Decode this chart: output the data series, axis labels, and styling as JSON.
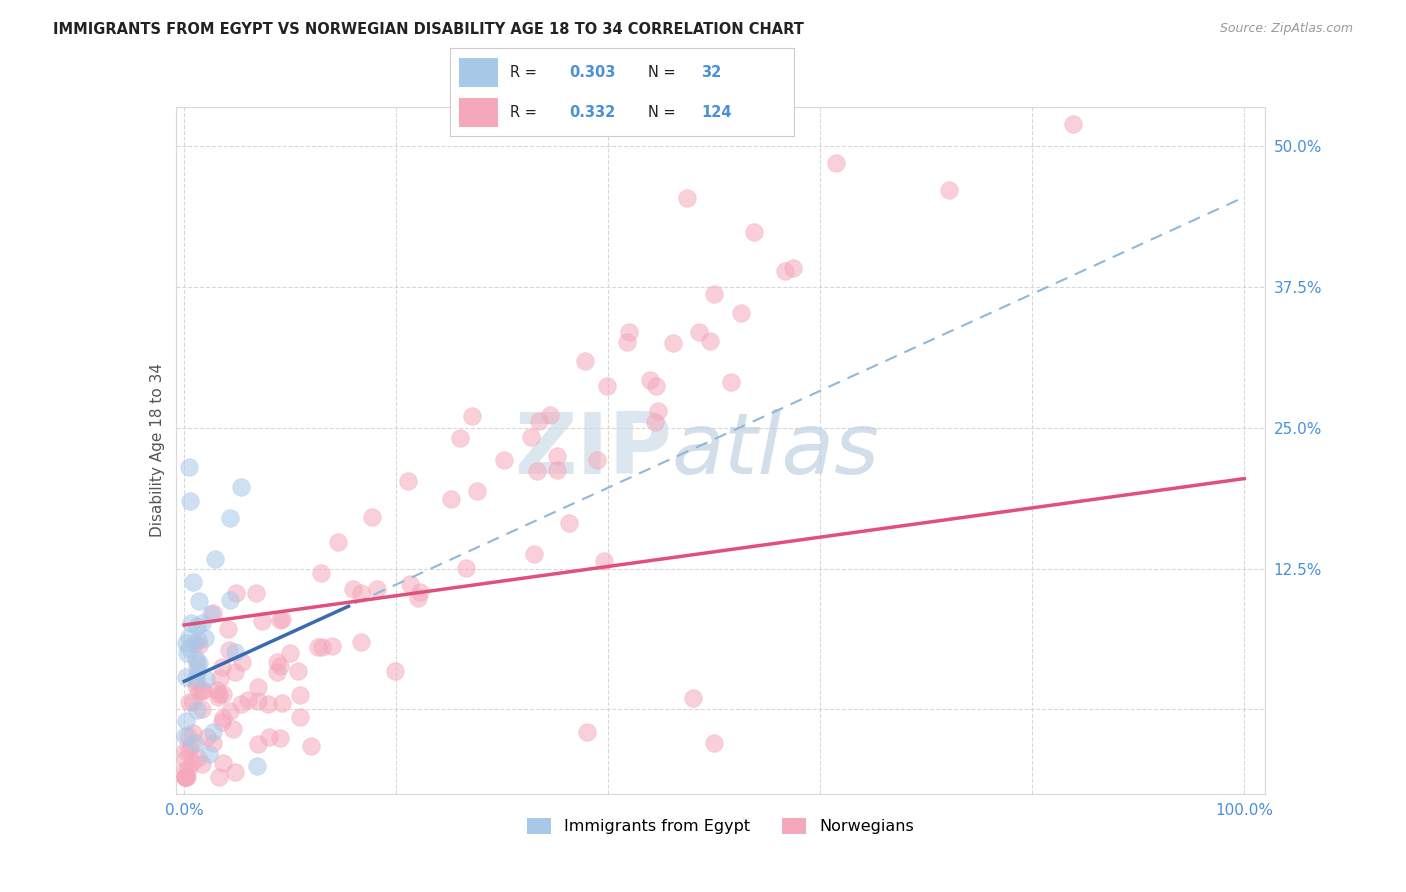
{
  "title": "IMMIGRANTS FROM EGYPT VS NORWEGIAN DISABILITY AGE 18 TO 34 CORRELATION CHART",
  "source": "Source: ZipAtlas.com",
  "ylabel": "Disability Age 18 to 34",
  "ytick_labels": [
    "50.0%",
    "37.5%",
    "25.0%",
    "12.5%"
  ],
  "ytick_values": [
    0.5,
    0.375,
    0.25,
    0.125
  ],
  "xlim": [
    -0.008,
    1.02
  ],
  "ylim": [
    -0.075,
    0.535
  ],
  "color_egypt": "#a8c8e8",
  "color_norway": "#f5a8bc",
  "color_egypt_line": "#3a6ab0",
  "color_norway_line": "#e0507a",
  "color_dashed": "#90b8d8",
  "bg_color": "#ffffff",
  "grid_color": "#d8d8d8",
  "tick_label_color": "#4a90d9",
  "title_color": "#222222",
  "source_color": "#999999",
  "ylabel_color": "#555555",
  "legend_text_color": "#222222",
  "watermark_zip_color": "#ccdce8",
  "watermark_atlas_color": "#c0d0e0",
  "legend_box_edge": "#cccccc",
  "R_egypt": 0.303,
  "N_egypt": 32,
  "R_norway": 0.332,
  "N_norway": 124,
  "norway_line_start_y": 0.075,
  "norway_line_end_y": 0.205,
  "dashed_line_start_y": 0.025,
  "dashed_line_end_y": 0.455,
  "egypt_line_end_x": 0.155
}
